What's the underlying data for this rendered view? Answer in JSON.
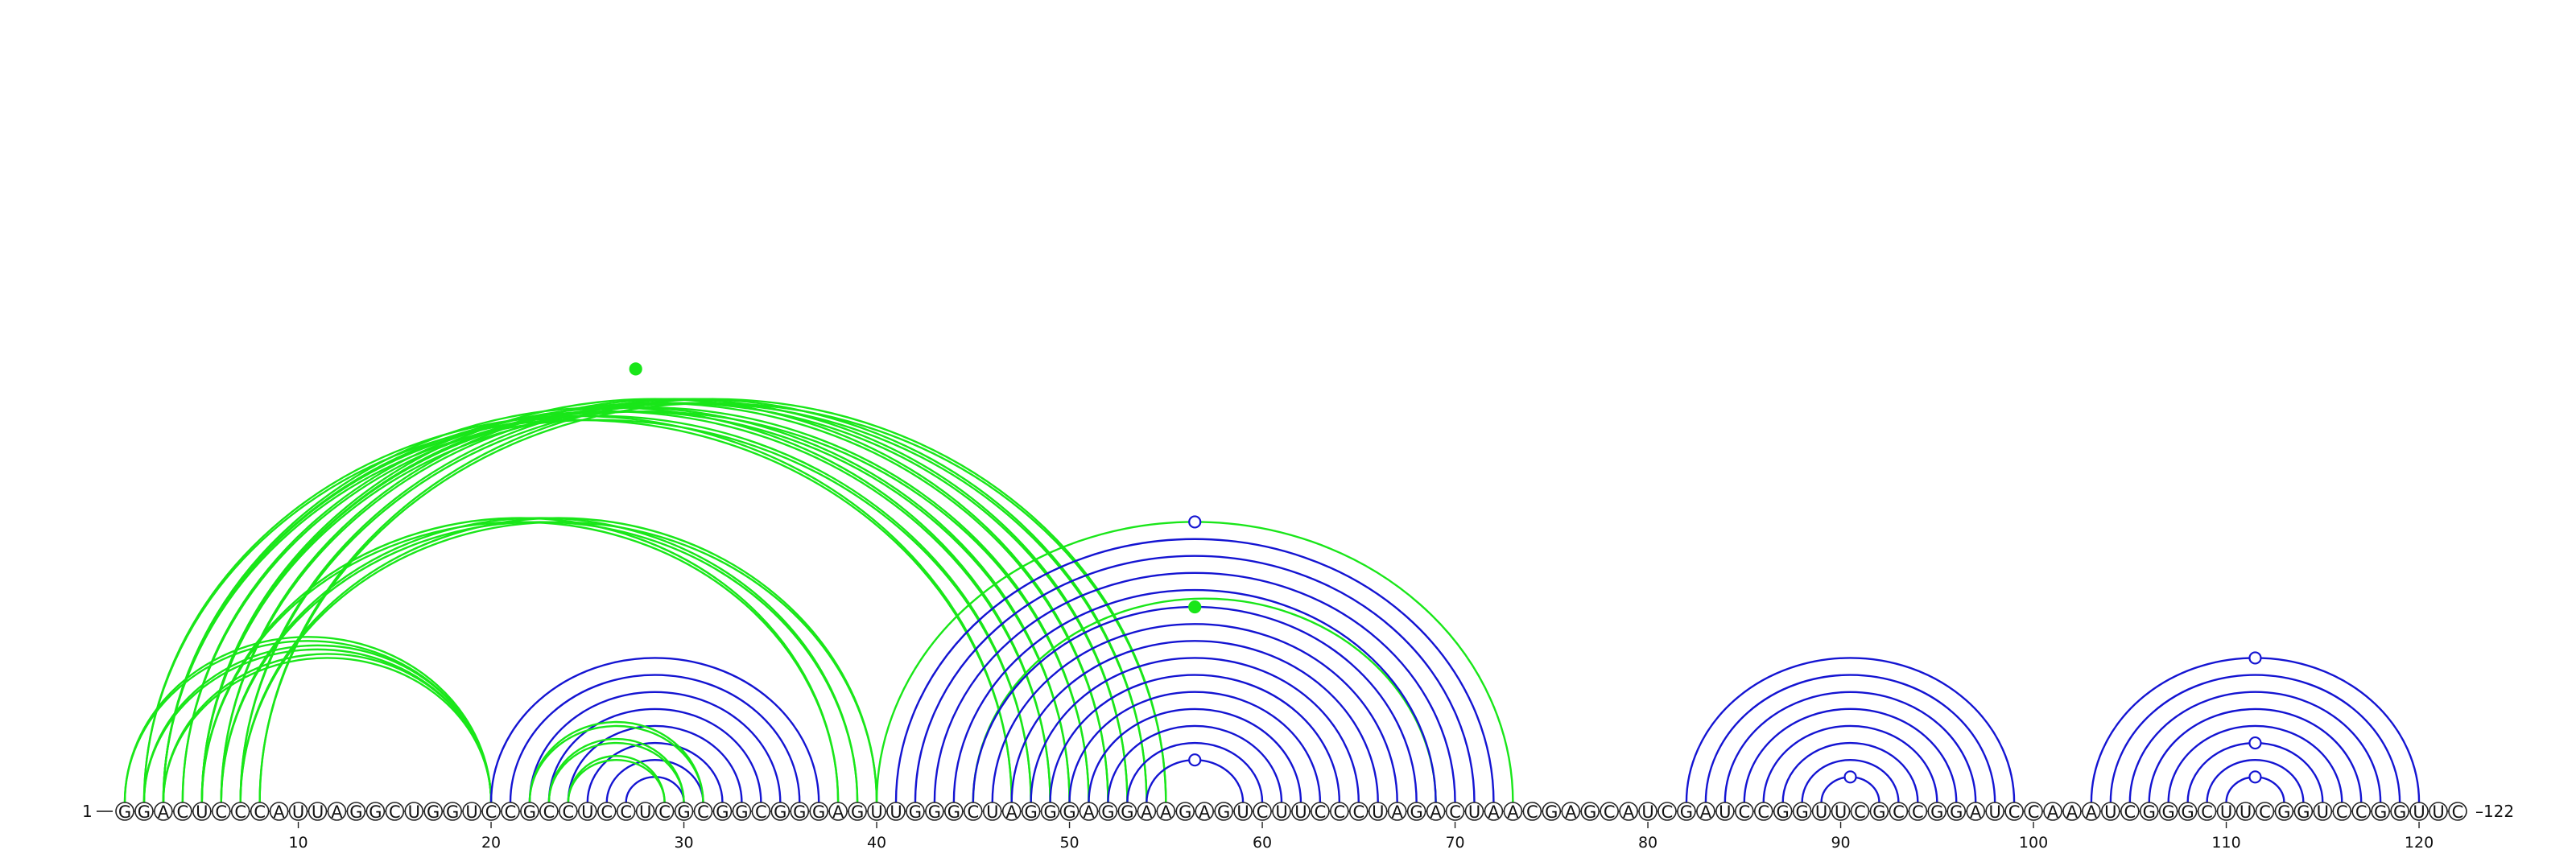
{
  "sequence": "GGACUCCCAUUAGGCUGGUCCGCCUCCUCGCGGCGGGAGUUGGGCUAGGGAGGAAGAGUCUUCCCUAGACUAACGAGCAUCGAUCCGGUUCGCCGGAUCCAAAUCGGGCUUCGGUCCGGUUC",
  "start_label": "1",
  "end_label": "122",
  "axis_ticks": [
    10,
    20,
    30,
    40,
    50,
    60,
    70,
    80,
    90,
    100,
    110,
    120
  ],
  "colors": {
    "green": "#19e619",
    "blue": "#1414d2",
    "marker_open_fill": "#ffffff"
  },
  "stems": [
    {
      "color": "green",
      "pairs": [
        [
          2,
          47
        ],
        [
          3,
          48
        ],
        [
          3,
          49
        ],
        [
          4,
          50
        ],
        [
          5,
          51
        ],
        [
          5,
          52
        ],
        [
          6,
          53
        ],
        [
          7,
          54
        ],
        [
          8,
          55
        ]
      ],
      "double": true
    },
    {
      "color": "green",
      "pairs": [
        [
          5,
          38
        ],
        [
          6,
          39
        ],
        [
          7,
          40
        ]
      ],
      "double": true
    },
    {
      "color": "green",
      "pairs": [
        [
          1,
          20
        ],
        [
          2,
          20
        ],
        [
          3,
          20
        ]
      ],
      "double": true
    },
    {
      "color": "blue",
      "pairs": [
        [
          20,
          37
        ],
        [
          21,
          36
        ],
        [
          22,
          35
        ],
        [
          23,
          34
        ],
        [
          24,
          33
        ],
        [
          25,
          32
        ],
        [
          26,
          31
        ],
        [
          27,
          30
        ]
      ]
    },
    {
      "color": "green",
      "pairs": [
        [
          22,
          31
        ],
        [
          23,
          30
        ],
        [
          24,
          29
        ]
      ],
      "double": true
    },
    {
      "color": "green",
      "pairs": [
        [
          40,
          73
        ],
        [
          45,
          69
        ]
      ]
    },
    {
      "color": "blue",
      "pairs": [
        [
          41,
          72
        ],
        [
          42,
          71
        ],
        [
          43,
          70
        ],
        [
          44,
          69
        ],
        [
          45,
          68
        ],
        [
          46,
          67
        ],
        [
          47,
          66
        ],
        [
          48,
          65
        ],
        [
          49,
          64
        ],
        [
          50,
          63
        ],
        [
          51,
          62
        ],
        [
          52,
          61
        ],
        [
          53,
          60
        ],
        [
          54,
          59
        ]
      ]
    },
    {
      "color": "blue",
      "pairs": [
        [
          82,
          99
        ],
        [
          83,
          98
        ],
        [
          84,
          97
        ],
        [
          85,
          96
        ],
        [
          86,
          95
        ],
        [
          87,
          94
        ],
        [
          88,
          93
        ],
        [
          89,
          92
        ]
      ]
    },
    {
      "color": "blue",
      "pairs": [
        [
          103,
          120
        ],
        [
          104,
          119
        ],
        [
          105,
          118
        ],
        [
          106,
          117
        ],
        [
          107,
          116
        ],
        [
          108,
          115
        ],
        [
          109,
          114
        ],
        [
          110,
          113
        ]
      ]
    }
  ],
  "markers": [
    {
      "between": [
        2,
        53
      ],
      "height_extra": 0,
      "type": "filled",
      "color": "green"
    },
    {
      "between": [
        40,
        73
      ],
      "height_extra": 0,
      "type": "open",
      "color": "blue"
    },
    {
      "between": [
        45,
        68
      ],
      "height_extra": 0,
      "type": "filled",
      "color": "green"
    },
    {
      "between": [
        54,
        59
      ],
      "height_extra": 0,
      "type": "open",
      "color": "blue"
    },
    {
      "between": [
        89,
        92
      ],
      "height_extra": 0,
      "type": "open",
      "color": "blue"
    },
    {
      "between": [
        103,
        120
      ],
      "height_extra": 0,
      "type": "open",
      "color": "blue"
    },
    {
      "between": [
        108,
        115
      ],
      "height_extra": 0,
      "type": "open",
      "color": "blue"
    },
    {
      "between": [
        110,
        113
      ],
      "height_extra": 0,
      "type": "open",
      "color": "blue"
    }
  ]
}
